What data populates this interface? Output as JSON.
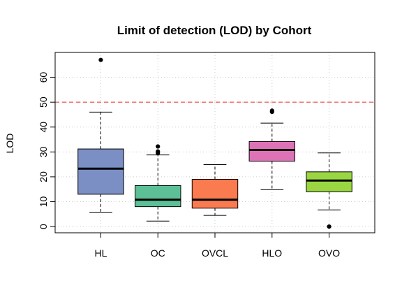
{
  "chart_data": {
    "type": "box",
    "title": "Limit of detection (LOD) by Cohort",
    "xlabel": "",
    "ylabel": "LOD",
    "ylim": [
      -2.5,
      70
    ],
    "yticks": [
      0,
      10,
      20,
      30,
      40,
      50,
      60
    ],
    "grid": true,
    "reference_line": {
      "y": 50,
      "color": "#ee6666",
      "style": "dashed"
    },
    "categories": [
      "HL",
      "OC",
      "OVCL",
      "HLO",
      "OVO"
    ],
    "boxes": [
      {
        "name": "HL",
        "whisker_low": 5.8,
        "q1": 13.0,
        "median": 23.3,
        "q3": 31.2,
        "whisker_high": 46.0,
        "outliers": [
          67.0
        ],
        "color": "#7b8fc4"
      },
      {
        "name": "OC",
        "whisker_low": 2.2,
        "q1": 8.0,
        "median": 10.8,
        "q3": 16.5,
        "whisker_high": 28.8,
        "outliers": [
          29.6,
          30.2,
          32.2
        ],
        "color": "#5cbf96"
      },
      {
        "name": "OVCL",
        "whisker_low": 4.5,
        "q1": 7.4,
        "median": 10.8,
        "q3": 19.0,
        "whisker_high": 24.9,
        "outliers": [],
        "color": "#fa7b50"
      },
      {
        "name": "HLO",
        "whisker_low": 14.8,
        "q1": 26.3,
        "median": 30.8,
        "q3": 34.2,
        "whisker_high": 41.6,
        "outliers": [
          46.1,
          46.6
        ],
        "color": "#de72b6"
      },
      {
        "name": "OVO",
        "whisker_low": 6.7,
        "q1": 14.0,
        "median": 18.5,
        "q3": 22.0,
        "whisker_high": 29.6,
        "outliers": [
          0.0
        ],
        "color": "#9ad642"
      }
    ]
  }
}
